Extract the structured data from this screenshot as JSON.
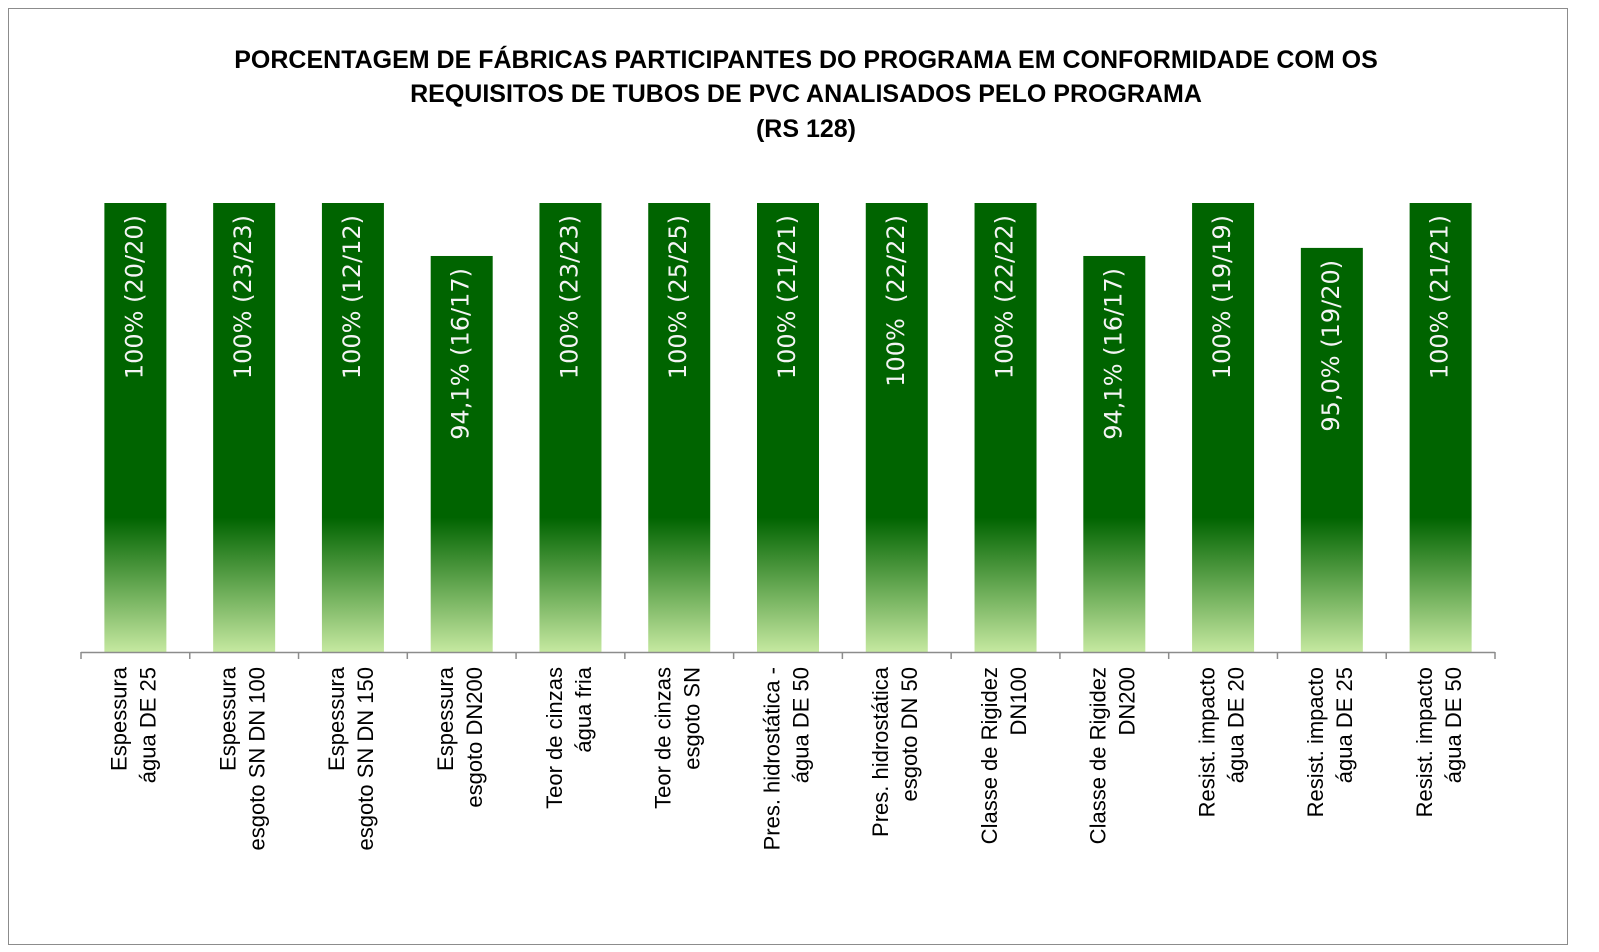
{
  "chart_data": {
    "type": "bar",
    "title": [
      "PORCENTAGEM DE FÁBRICAS PARTICIPANTES DO PROGRAMA EM CONFORMIDADE COM OS",
      "REQUISITOS DE TUBOS DE PVC ANALISADOS PELO PROGRAMA"
    ],
    "subtitle": "(RS 128)",
    "categories": [
      [
        "Espessura",
        "água DE 25"
      ],
      [
        "Espessura",
        "esgoto SN DN 100"
      ],
      [
        "Espessura",
        "esgoto SN DN 150"
      ],
      [
        "Espessura",
        "esgoto DN200"
      ],
      [
        "Teor de cinzas",
        "água fria"
      ],
      [
        "Teor de cinzas",
        "esgoto SN"
      ],
      [
        "Pres. hidrostática -",
        "água DE 50"
      ],
      [
        "Pres. hidrostática",
        "esgoto DN 50"
      ],
      [
        "Classe de Rigidez",
        "DN100"
      ],
      [
        "Classe de Rigidez",
        "DN200"
      ],
      [
        "Resist. impacto",
        "água DE 20"
      ],
      [
        "Resist. impacto",
        "água DE 25"
      ],
      [
        "Resist. impacto",
        "água DE 50"
      ]
    ],
    "values": [
      100,
      100,
      100,
      94.1,
      100,
      100,
      100,
      100,
      100,
      94.1,
      100,
      95.0,
      100
    ],
    "value_labels": [
      "100% (20/20)",
      "100% (23/23)",
      "100% (12/12)",
      "94,1% (16/17)",
      "100% (23/23)",
      "100% (25/25)",
      "100% (21/21)",
      "100%  (22/22)",
      "100% (22/22)",
      "94,1% (16/17)",
      "100% (19/19)",
      "95,0% (19/20)",
      "100% (21/21)"
    ],
    "color": [
      "#006400",
      "#c5e8a0"
    ],
    "ylim": [
      50,
      100
    ]
  }
}
